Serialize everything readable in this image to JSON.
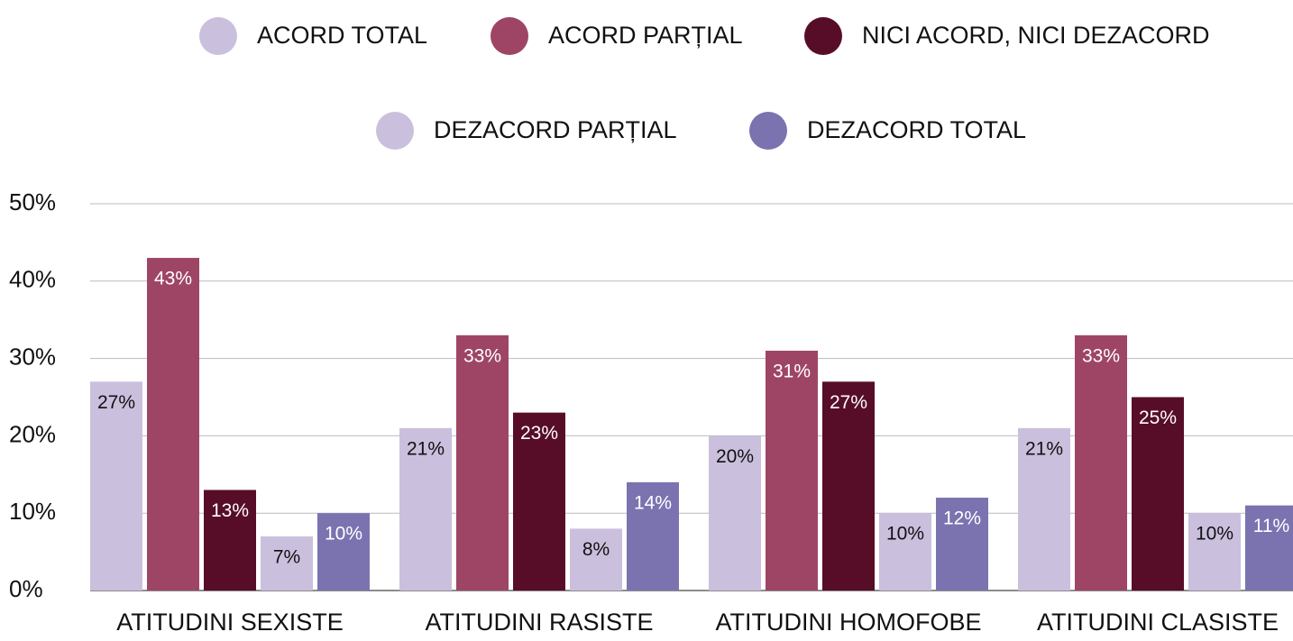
{
  "chart_data": {
    "type": "bar",
    "categories": [
      "ATITUDINI SEXISTE",
      "ATITUDINI RASISTE",
      "ATITUDINI HOMOFOBE",
      "ATITUDINI CLASISTE"
    ],
    "series": [
      {
        "name": "ACORD TOTAL",
        "color": "#cbbfde",
        "values": [
          27,
          21,
          20,
          21
        ],
        "value_labels": [
          "27%",
          "21%",
          "20%",
          "21%"
        ]
      },
      {
        "name": "ACORD PARȚIAL",
        "color": "#9e4566",
        "values": [
          43,
          33,
          31,
          33
        ],
        "value_labels": [
          "43%",
          "33%",
          "31%",
          "33%"
        ]
      },
      {
        "name": "NICI ACORD, NICI DEZACORD",
        "color": "#570d28",
        "values": [
          13,
          23,
          27,
          25
        ],
        "value_labels": [
          "13%",
          "23%",
          "27%",
          "25%"
        ]
      },
      {
        "name": "DEZACORD PARȚIAL",
        "color": "#cbbfde",
        "values": [
          7,
          8,
          10,
          10
        ],
        "value_labels": [
          "7%",
          "8%",
          "10%",
          "10%"
        ]
      },
      {
        "name": "DEZACORD TOTAL",
        "color": "#7b73b0",
        "values": [
          10,
          14,
          12,
          11
        ],
        "value_labels": [
          "10%",
          "14%",
          "12%",
          "11%"
        ]
      }
    ],
    "ylim": [
      0,
      50
    ],
    "yticks": [
      {
        "value": 0,
        "label": "0%"
      },
      {
        "value": 10,
        "label": "10%"
      },
      {
        "value": 20,
        "label": "20%"
      },
      {
        "value": 30,
        "label": "30%"
      },
      {
        "value": 40,
        "label": "40%"
      },
      {
        "value": 50,
        "label": "50%"
      }
    ],
    "grid": true
  }
}
